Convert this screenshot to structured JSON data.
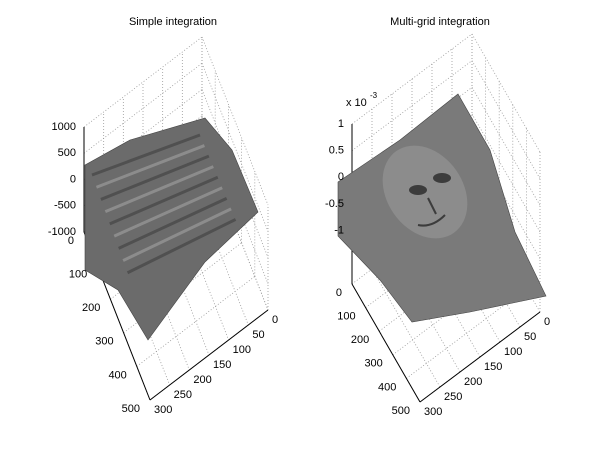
{
  "chart_data": [
    {
      "type": "surface",
      "title": "Simple integration",
      "xlim": [
        0,
        500
      ],
      "xticks": [
        0,
        100,
        200,
        300,
        400,
        500
      ],
      "ylim": [
        0,
        300
      ],
      "yticks": [
        0,
        50,
        100,
        150,
        200,
        250,
        300
      ],
      "zlim": [
        -1000,
        1000
      ],
      "zticks": [
        -1000,
        -500,
        0,
        500,
        1000
      ],
      "grid": true,
      "color": "#6b6b6b"
    },
    {
      "type": "surface",
      "title": "Multi-grid integration",
      "z_multiplier": "x 10",
      "z_exponent": "-3",
      "xlim": [
        0,
        500
      ],
      "xticks": [
        0,
        100,
        200,
        300,
        400,
        500
      ],
      "ylim": [
        0,
        300
      ],
      "yticks": [
        0,
        50,
        100,
        150,
        200,
        250,
        300
      ],
      "zlim": [
        -2,
        1
      ],
      "zticks": [
        -1,
        -0.5,
        0,
        0.5,
        1
      ],
      "grid": true,
      "color": "#7a7a7a"
    }
  ]
}
